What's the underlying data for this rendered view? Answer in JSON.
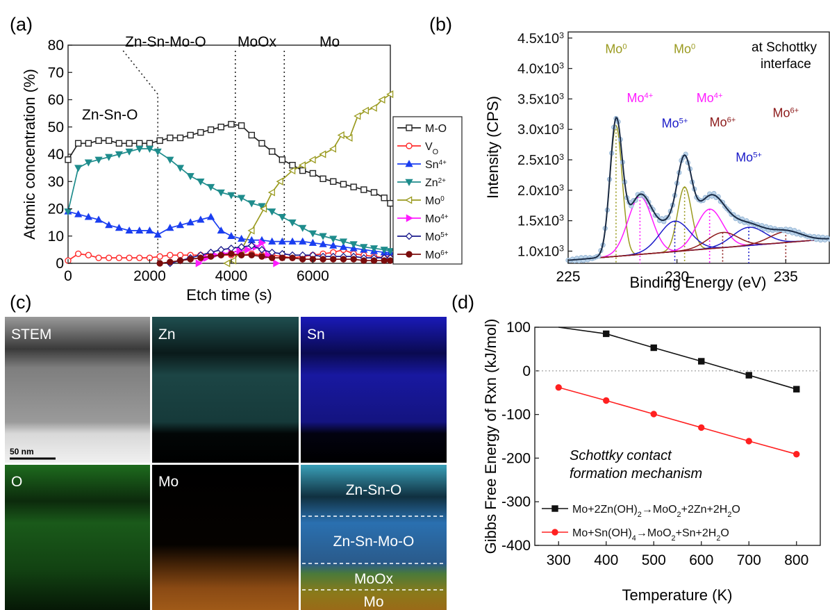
{
  "panels": {
    "a": "(a)",
    "b": "(b)",
    "c": "(c)",
    "d": "(d)"
  },
  "chart_data": [
    {
      "id": "a",
      "type": "line",
      "xlabel": "Etch time (s)",
      "ylabel": "Atomic concentration (%)",
      "xlim": [
        0,
        7900
      ],
      "ylim": [
        0,
        80
      ],
      "xticks": [
        0,
        2000,
        4000,
        6000
      ],
      "yticks": [
        0,
        10,
        20,
        30,
        40,
        50,
        60,
        70,
        80
      ],
      "grid": false,
      "legend_position": "outside-right",
      "region_labels": [
        "Zn-Sn-O",
        "Zn-Sn-Mo-O",
        "MoOx",
        "Mo"
      ],
      "series": [
        {
          "name": "M-O",
          "color": "#222222",
          "marker": "square-open",
          "x": [
            0,
            250,
            500,
            750,
            1000,
            1250,
            1500,
            1750,
            2000,
            2250,
            2500,
            2750,
            3000,
            3250,
            3500,
            3750,
            4000,
            4250,
            4500,
            4750,
            5000,
            5250,
            5500,
            5750,
            6000,
            6250,
            6500,
            6750,
            7000,
            7250,
            7500,
            7750,
            7900
          ],
          "y": [
            38,
            44,
            44,
            45,
            45,
            44,
            44,
            44,
            44,
            45,
            46,
            46,
            47,
            48,
            49,
            50,
            51,
            50.5,
            47,
            44,
            41,
            38,
            36,
            34,
            33,
            31,
            30,
            29,
            28,
            27,
            26,
            24,
            22
          ]
        },
        {
          "name": "VO",
          "color": "#ff2b2b",
          "marker": "circle-open",
          "x": [
            0,
            250,
            500,
            750,
            1000,
            1250,
            1500,
            1750,
            2000,
            2250,
            2500,
            2750,
            3000,
            3250,
            3500,
            3750,
            4000,
            4250,
            4500,
            4750,
            5000,
            5250,
            5500,
            5750,
            6000,
            6250,
            6500,
            6750,
            7000,
            7250,
            7500,
            7750,
            7900
          ],
          "y": [
            1,
            3.5,
            3,
            2,
            2,
            2,
            2,
            2,
            2,
            2.5,
            3,
            3,
            3,
            3,
            3.5,
            3,
            3,
            3,
            3.5,
            3,
            3,
            2.5,
            2,
            2.5,
            3,
            3.5,
            4,
            5,
            3.5,
            3,
            2.5,
            2,
            2
          ]
        },
        {
          "name": "Sn4+",
          "color": "#1a3ef0",
          "marker": "triangle-up",
          "x": [
            0,
            250,
            500,
            750,
            1000,
            1250,
            1500,
            1750,
            2000,
            2200,
            2500,
            2750,
            3000,
            3250,
            3500,
            3750,
            4000,
            4250,
            4500,
            4750,
            5000,
            5250,
            5500,
            5750,
            6000,
            6250,
            6500,
            6750,
            7000,
            7250,
            7500,
            7750,
            7900
          ],
          "y": [
            19,
            18,
            17,
            16,
            14,
            13,
            12,
            12,
            12,
            10.5,
            13,
            14,
            15,
            16,
            17,
            12,
            10,
            9,
            8.5,
            8.5,
            8,
            8,
            8,
            8,
            7.5,
            7,
            6.5,
            6,
            5.5,
            5,
            4.5,
            4,
            4
          ]
        },
        {
          "name": "Zn2+",
          "color": "#1e8c8c",
          "marker": "triangle-down",
          "x": [
            0,
            250,
            500,
            750,
            1000,
            1250,
            1500,
            1750,
            2000,
            2200,
            2500,
            2750,
            3000,
            3250,
            3500,
            3750,
            4000,
            4250,
            4500,
            4750,
            5000,
            5250,
            5500,
            5750,
            6000,
            6250,
            6500,
            6750,
            7000,
            7250,
            7500,
            7750,
            7900
          ],
          "y": [
            19,
            35,
            37,
            38,
            39,
            40,
            41,
            42,
            42,
            41,
            38,
            35,
            32,
            30,
            28,
            26,
            25,
            24,
            22,
            21,
            19,
            17,
            15,
            13,
            11,
            10,
            9,
            8,
            7,
            6,
            5.5,
            5,
            4.5
          ]
        },
        {
          "name": "Mo0",
          "color": "#9a9a1f",
          "marker": "triangle-left-open",
          "x": [
            3900,
            4050,
            4250,
            4500,
            4800,
            5000,
            5200,
            5500,
            5750,
            6000,
            6250,
            6500,
            6700,
            6900,
            7100,
            7300,
            7500,
            7700,
            7900
          ],
          "y": [
            0,
            1,
            5,
            12,
            20,
            26,
            30,
            34,
            36,
            38,
            40,
            42,
            47,
            46,
            54,
            56,
            57,
            60,
            62
          ]
        },
        {
          "name": "Mo4+",
          "color": "#ff1aff",
          "marker": "triangle-right",
          "x": [
            3200,
            3400,
            3600,
            3800,
            4000,
            4200,
            4400,
            4600,
            4750,
            4900,
            5100
          ],
          "y": [
            0,
            2,
            3,
            3.5,
            4,
            4.5,
            5,
            6,
            7.5,
            3,
            0
          ]
        },
        {
          "name": "Mo5+",
          "color": "#1a1a8c",
          "marker": "diamond-open",
          "x": [
            2500,
            2750,
            3000,
            3250,
            3500,
            3750,
            4000,
            4250,
            4500,
            4750,
            5000,
            5250,
            5500,
            5750,
            6000,
            6250,
            6500,
            6750,
            7000,
            7250,
            7500,
            7750,
            7900
          ],
          "y": [
            0,
            1,
            2,
            3,
            4,
            5,
            5.5,
            6,
            6.5,
            5,
            4,
            3.5,
            3,
            3,
            3,
            2.5,
            2.5,
            2.5,
            2.5,
            2,
            2,
            2,
            2
          ]
        },
        {
          "name": "Mo6+",
          "color": "#7a0c0c",
          "marker": "circle",
          "x": [
            2250,
            2500,
            2750,
            3000,
            3250,
            3500,
            3750,
            4000,
            4250,
            4500,
            4750,
            5000,
            5250,
            5500,
            5750,
            6000,
            6250,
            6500,
            6750,
            7000,
            7250,
            7500,
            7750,
            7900
          ],
          "y": [
            0,
            0.5,
            1,
            1.5,
            2,
            2.5,
            3,
            3.5,
            3,
            3,
            2.5,
            2,
            2,
            2,
            1.5,
            1.5,
            1.5,
            1.5,
            1.5,
            1.5,
            1,
            1,
            1,
            1
          ]
        }
      ]
    },
    {
      "id": "b",
      "type": "line",
      "xlabel": "Binding Energy (eV)",
      "ylabel": "Intensity (CPS)",
      "xlim": [
        225,
        237
      ],
      "ylim": [
        800,
        4600
      ],
      "xticks": [
        225,
        230,
        235
      ],
      "yticks_labels": [
        "1.0x10",
        "1.5x10",
        "2.0x10",
        "2.5x10",
        "3.0x10",
        "3.5x10",
        "4.0x10",
        "4.5x10"
      ],
      "yticks": [
        1000,
        1500,
        2000,
        2500,
        3000,
        3500,
        4000,
        4500
      ],
      "ytick_exponent": "3",
      "annotation": "at Schottky interface",
      "background": {
        "x": [
          225,
          237
        ],
        "y": [
          850,
          1200
        ]
      },
      "peaks": [
        {
          "label": "Mo",
          "sup": "0",
          "center": 227.2,
          "amplitude": 2150,
          "sigma": 0.28,
          "color": "#9a9a1f"
        },
        {
          "label": "Mo",
          "sup": "0",
          "center": 230.35,
          "amplitude": 1050,
          "sigma": 0.32,
          "color": "#9a9a1f"
        },
        {
          "label": "Mo",
          "sup": "4+",
          "center": 228.3,
          "amplitude": 950,
          "sigma": 0.55,
          "color": "#ff1aff"
        },
        {
          "label": "Mo",
          "sup": "4+",
          "center": 231.5,
          "amplitude": 650,
          "sigma": 0.6,
          "color": "#ff1aff"
        },
        {
          "label": "Mo",
          "sup": "5+",
          "center": 229.9,
          "amplitude": 500,
          "sigma": 0.7,
          "color": "#1a1ac8"
        },
        {
          "label": "Mo",
          "sup": "5+",
          "center": 233.3,
          "amplitude": 300,
          "sigma": 0.75,
          "color": "#1a1ac8"
        },
        {
          "label": "Mo",
          "sup": "6+",
          "center": 232.1,
          "amplitude": 250,
          "sigma": 0.7,
          "color": "#8c1a1a"
        },
        {
          "label": "Mo",
          "sup": "6+",
          "center": 235.0,
          "amplitude": 180,
          "sigma": 0.75,
          "color": "#8c1a1a"
        }
      ]
    },
    {
      "id": "d",
      "type": "line",
      "xlabel": "Temperature (K)",
      "ylabel": "Gibbs Free Energy of Rxn (kJ/mol)",
      "xlim": [
        250,
        850
      ],
      "ylim": [
        -400,
        100
      ],
      "xticks": [
        300,
        400,
        500,
        600,
        700,
        800
      ],
      "yticks": [
        -400,
        -300,
        -200,
        -100,
        0,
        100
      ],
      "annotation": [
        "Schottky contact",
        "formation mechanism"
      ],
      "legend_position": "bottom-left",
      "series": [
        {
          "name": "Mo+2Zn(OH)2→MoO2+2Zn+2H2O",
          "color": "#111111",
          "marker": "square",
          "x": [
            300,
            400,
            500,
            600,
            700,
            800
          ],
          "y": [
            117,
            85,
            53,
            22,
            -10,
            -42
          ]
        },
        {
          "name": "Mo+Sn(OH)4→MoO2+Sn+2H2O",
          "color": "#ff2020",
          "marker": "circle",
          "x": [
            300,
            400,
            500,
            600,
            700,
            800
          ],
          "y": [
            -38,
            -68,
            -99,
            -130,
            -161,
            -191
          ]
        }
      ]
    }
  ],
  "maps": {
    "tiles": [
      {
        "label": "STEM",
        "scalebar": "50 nm"
      },
      {
        "label": "Zn"
      },
      {
        "label": "Sn"
      },
      {
        "label": "O"
      },
      {
        "label": "Mo"
      },
      {
        "label": ""
      }
    ],
    "overlay_labels": [
      "Zn-Sn-O",
      "Zn-Sn-Mo-O",
      "MoOx",
      "Mo"
    ]
  }
}
